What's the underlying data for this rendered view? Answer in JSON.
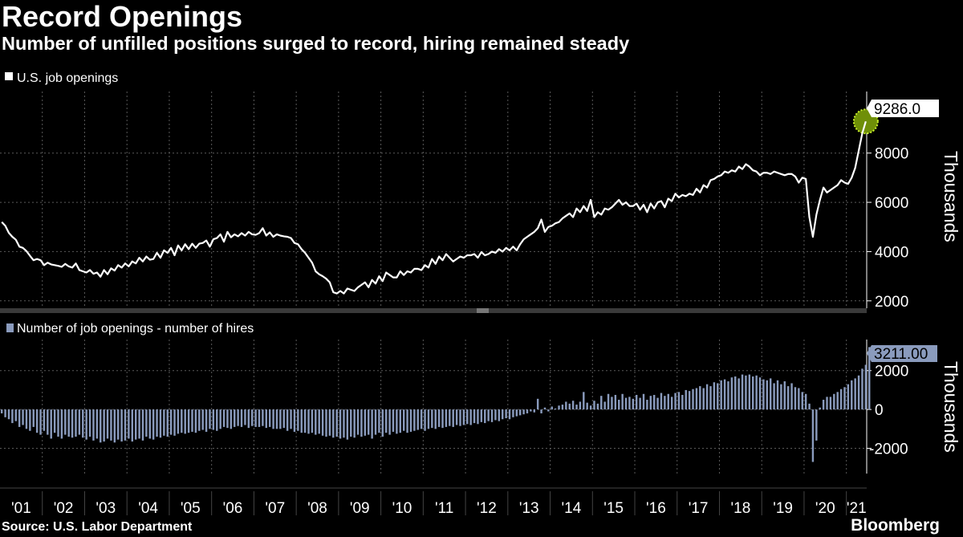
{
  "title": "Record Openings",
  "subtitle": "Number of unfilled positions surged to record, hiring remained steady",
  "source": "Source: U.S. Labor Department",
  "brand": "Bloomberg",
  "colors": {
    "line": "#ffffff",
    "bars": "#8a9bbd",
    "marker": "#a8d11a",
    "grid": "#5a5a5a",
    "background": "#000000"
  },
  "chart_data": [
    {
      "type": "line",
      "legend": "U.S. job openings",
      "ylabel": "Thousands",
      "ylim": [
        1700,
        10500
      ],
      "yticks": [
        2000,
        4000,
        6000,
        8000
      ],
      "x_start": 2001.0,
      "x_step_years": 0.0833333,
      "end_label": "9286.0",
      "values": [
        5200,
        5050,
        4760,
        4600,
        4480,
        4200,
        4150,
        4020,
        3830,
        3650,
        3700,
        3650,
        3450,
        3550,
        3480,
        3450,
        3420,
        3380,
        3500,
        3400,
        3350,
        3520,
        3250,
        3200,
        3150,
        3250,
        3100,
        3150,
        2980,
        3250,
        3080,
        3320,
        3230,
        3450,
        3350,
        3520,
        3400,
        3600,
        3520,
        3750,
        3600,
        3800,
        3670,
        3700,
        3950,
        3750,
        4050,
        3950,
        4150,
        3850,
        4250,
        4050,
        4300,
        4100,
        4320,
        4150,
        4320,
        4350,
        4450,
        4200,
        4500,
        4550,
        4700,
        4400,
        4800,
        4580,
        4700,
        4620,
        4750,
        4650,
        4800,
        4700,
        4680,
        4750,
        4950,
        4650,
        4780,
        4600,
        4700,
        4650,
        4620,
        4600,
        4550,
        4350,
        4300,
        4100,
        3950,
        3750,
        3550,
        3200,
        3080,
        3000,
        2900,
        2750,
        2350,
        2300,
        2400,
        2300,
        2500,
        2450,
        2400,
        2550,
        2650,
        2750,
        2550,
        2850,
        2700,
        3000,
        2800,
        3150,
        3050,
        2950,
        2950,
        3200,
        3050,
        3200,
        3150,
        3300,
        3300,
        3250,
        3450,
        3350,
        3700,
        3500,
        3800,
        3650,
        3900,
        3750,
        3600,
        3700,
        3800,
        3750,
        3850,
        3850,
        3900,
        3750,
        3980,
        3850,
        3900,
        4000,
        3950,
        4100,
        4000,
        4150,
        4050,
        4200,
        4050,
        4300,
        4500,
        4600,
        4700,
        4800,
        4950,
        5300,
        4800,
        5000,
        5050,
        5150,
        5200,
        5350,
        5450,
        5550,
        5400,
        5750,
        5600,
        5850,
        5650,
        6100,
        5400,
        5600,
        5500,
        5750,
        5700,
        5800,
        5950,
        6100,
        5900,
        6000,
        5850,
        5850,
        5950,
        5700,
        5900,
        5600,
        5950,
        5750,
        6000,
        6050,
        5800,
        6150,
        6050,
        6350,
        6200,
        6300,
        6250,
        6350,
        6300,
        6550,
        6400,
        6700,
        6600,
        6900,
        6950,
        7050,
        7100,
        7250,
        7200,
        7300,
        7250,
        7450,
        7350,
        7550,
        7450,
        7300,
        7250,
        7100,
        7200,
        7200,
        7150,
        7250,
        7200,
        7150,
        7100,
        7150,
        7150,
        7050,
        6800,
        7000,
        6950,
        5400,
        4600,
        5500,
        6100,
        6600,
        6400,
        6500,
        6600,
        6700,
        6900,
        6800,
        6750,
        7000,
        7400,
        8100,
        8800,
        9286
      ]
    },
    {
      "type": "bar",
      "legend": "Number of job openings - number of hires",
      "ylabel": "Thousands",
      "ylim": [
        -3300,
        3600
      ],
      "yticks": [
        -2000,
        0,
        2000
      ],
      "x_start": 2001.0,
      "x_step_years": 0.0833333,
      "end_label": "3211.00",
      "values": [
        -200,
        -400,
        -500,
        -700,
        -600,
        -900,
        -800,
        -1000,
        -1100,
        -900,
        -1200,
        -1300,
        -1100,
        -1300,
        -1500,
        -1200,
        -1400,
        -1500,
        -1300,
        -1400,
        -1450,
        -1400,
        -1300,
        -1450,
        -1550,
        -1400,
        -1600,
        -1500,
        -1700,
        -1650,
        -1500,
        -1600,
        -1700,
        -1550,
        -1650,
        -1600,
        -1500,
        -1650,
        -1550,
        -1500,
        -1600,
        -1400,
        -1500,
        -1550,
        -1400,
        -1450,
        -1350,
        -1400,
        -1300,
        -1350,
        -1250,
        -1200,
        -1250,
        -1200,
        -1150,
        -1200,
        -1100,
        -1050,
        -1150,
        -1000,
        -1050,
        -1100,
        -1000,
        -900,
        -950,
        -1000,
        -900,
        -850,
        -900,
        -800,
        -950,
        -850,
        -900,
        -900,
        -850,
        -950,
        -900,
        -1000,
        -1000,
        -1000,
        -950,
        -1100,
        -1000,
        -1150,
        -1100,
        -1200,
        -1200,
        -1250,
        -1200,
        -1300,
        -1250,
        -1350,
        -1400,
        -1350,
        -1450,
        -1400,
        -1500,
        -1450,
        -1550,
        -1400,
        -1450,
        -1300,
        -1400,
        -1350,
        -1300,
        -1500,
        -1300,
        -1200,
        -1400,
        -1200,
        -1300,
        -1150,
        -1250,
        -1200,
        -1100,
        -1200,
        -1150,
        -1100,
        -1050,
        -1000,
        -1100,
        -1000,
        -950,
        -1000,
        -900,
        -950,
        -900,
        -850,
        -900,
        -800,
        -850,
        -800,
        -750,
        -800,
        -700,
        -750,
        -650,
        -700,
        -600,
        -650,
        -550,
        -600,
        -500,
        -450,
        -500,
        -400,
        -350,
        -300,
        -250,
        -200,
        -100,
        -150,
        550,
        -200,
        100,
        -100,
        150,
        50,
        200,
        250,
        400,
        300,
        450,
        250,
        400,
        900,
        350,
        200,
        450,
        300,
        700,
        400,
        800,
        650,
        750,
        500,
        800,
        600,
        650,
        550,
        750,
        600,
        800,
        500,
        700,
        750,
        600,
        850,
        700,
        800,
        650,
        850,
        900,
        750,
        1000,
        950,
        1050,
        1100,
        1200,
        1100,
        1300,
        1200,
        1400,
        1350,
        1500,
        1550,
        1450,
        1650,
        1700,
        1600,
        1800,
        1750,
        1800,
        1700,
        1750,
        1650,
        1550,
        1500,
        1600,
        1350,
        1500,
        1300,
        1450,
        1200,
        1350,
        1150,
        1100,
        900,
        800,
        300,
        -2700,
        -1600,
        100,
        500,
        650,
        650,
        800,
        900,
        1050,
        1150,
        1300,
        1500,
        1600,
        1750,
        2100,
        2300,
        3211
      ]
    }
  ],
  "x_axis": {
    "labels": [
      "'01",
      "'02",
      "'03",
      "'04",
      "'05",
      "'06",
      "'07",
      "'08",
      "'09",
      "'10",
      "'11",
      "'12",
      "'13",
      "'14",
      "'15",
      "'16",
      "'17",
      "'18",
      "'19",
      "'20",
      "'21"
    ]
  }
}
